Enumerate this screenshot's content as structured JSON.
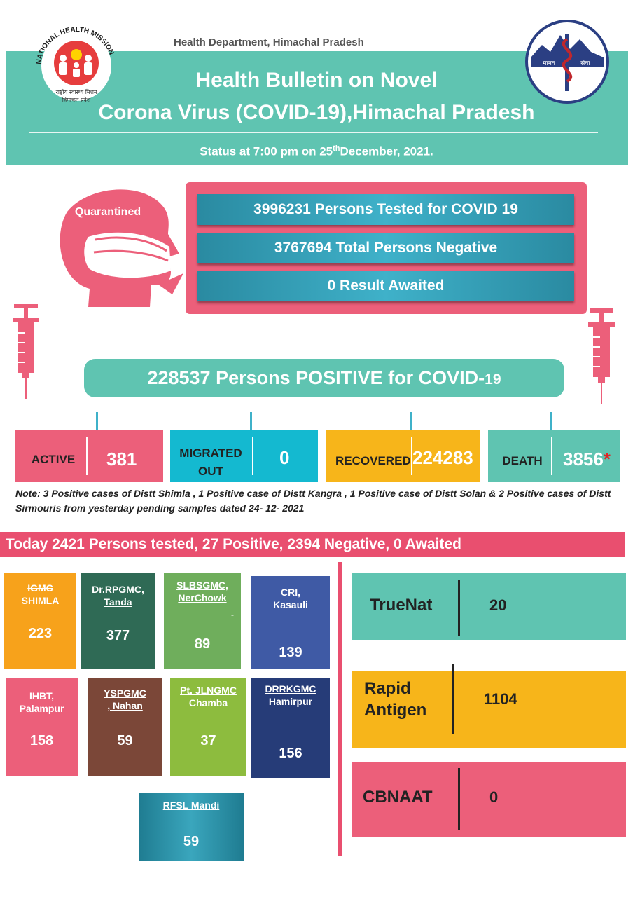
{
  "header": {
    "department": "Health Department, Himachal Pradesh",
    "title_line1": "Health Bulletin on Novel",
    "title_line2": "Corona Virus (COVID-19),Himachal Pradesh",
    "status_prefix": "Status at 7:00 pm on 25",
    "status_sup": "th",
    "status_suffix": "December, 2021.",
    "left_logo_text": "NATIONAL HEALTH MISSION",
    "left_logo_sub1": "राष्ट्रीय स्वास्थ्य मिशन",
    "left_logo_sub2": "हिमाचल प्रदेश",
    "right_logo_text1": "मानव",
    "right_logo_text2": "सेवा"
  },
  "quarantine": {
    "label": "Quarantined",
    "tested": "3996231 Persons Tested for COVID 19",
    "negative": "3767694 Total Persons Negative",
    "awaited": "0 Result  Awaited"
  },
  "positive": {
    "text": "228537 Persons POSITIVE for COVID-",
    "suffix": "19"
  },
  "stats": {
    "active_label": "ACTIVE",
    "active_value": "381",
    "migrated_label1": "MIGRATED",
    "migrated_label2": "OUT",
    "migrated_value": "0",
    "recovered_label": "RECOVERED",
    "recovered_value": "224283",
    "death_label": "DEATH",
    "death_value": "3856",
    "death_mark": "*"
  },
  "note": "Note: 3 Positive cases of Distt Shimla , 1 Positive case of Distt Kangra , 1  Positive case of  Distt Solan & 2  Positive cases of Distt Sirmouris from yesterday pending samples dated 24- 12- 2021",
  "today": "Today 2421 Persons tested, 27 Positive, 2394 Negative, 0 Awaited",
  "labs": {
    "igmc_a": "IGMC",
    "igmc_b": "SHIMLA",
    "igmc_v": "223",
    "rpgmc_a": "Dr.RPGMC,",
    "rpgmc_b": "Tanda",
    "rpgmc_v": "377",
    "slbsgmc_a": "SLBSGMC,",
    "slbsgmc_b": "NerChowk",
    "slbsgmc_dash": "-",
    "slbsgmc_v": "89",
    "cri_a": "CRI,",
    "cri_b": "Kasauli",
    "cri_v": "139",
    "ihbt_a": "IHBT,",
    "ihbt_b": "Palampur",
    "ihbt_v": "158",
    "yspgmc_a": "YSPGMC",
    "yspgmc_b": ", Nahan",
    "yspgmc_v": "59",
    "jlngmc_a": "Pt. JLNGMC",
    "jlngmc_b": "Chamba",
    "jlngmc_v": "37",
    "drrkgmc_a": "DRRKGMC",
    "drrkgmc_b": "Hamirpur",
    "drrkgmc_v": "156",
    "rfsl_a": "RFSL Mandi",
    "rfsl_v": "59"
  },
  "tests": {
    "truenat_label": "TrueNat",
    "truenat_value": "20",
    "rapid_label1": "Rapid",
    "rapid_label2": "Antigen",
    "rapid_value": "1104",
    "cbnaat_label": "CBNAAT",
    "cbnaat_value": "0"
  },
  "colors": {
    "teal": "#5fc4b1",
    "pink": "#ec5f7a",
    "orange": "#f7a21b",
    "cyan": "#14b9d0",
    "yellow": "#f7b51a",
    "dark_green": "#2f6a55",
    "green": "#6fae5c",
    "blue": "#3f5aa5",
    "brown": "#7b4738",
    "light_green": "#8dbc3e",
    "navy": "#263c78",
    "sea": "#2a8fa3"
  }
}
